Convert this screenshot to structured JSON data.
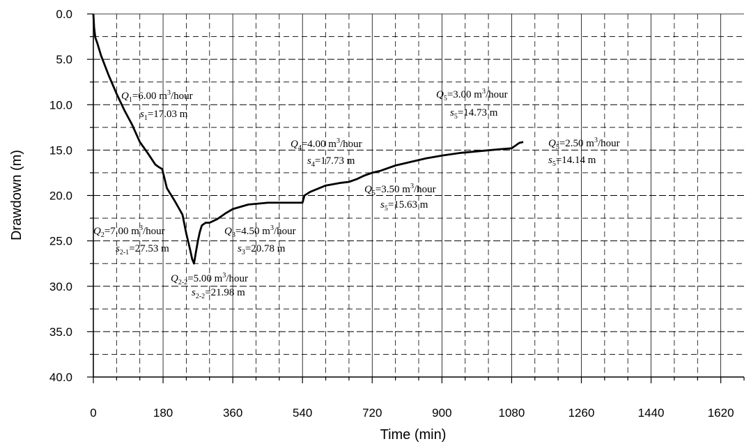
{
  "chart_data": {
    "type": "line",
    "xlabel": "Time (min)",
    "ylabel": "Drawdown (m)",
    "xlim": [
      0,
      1680
    ],
    "ylim": [
      0,
      40
    ],
    "y_inverted": true,
    "x_ticks": [
      0,
      180,
      360,
      540,
      720,
      900,
      1080,
      1260,
      1440,
      1620
    ],
    "y_ticks": [
      "0.0",
      "5.0",
      "10.0",
      "15.0",
      "20.0",
      "25.0",
      "30.0",
      "35.0",
      "40.0"
    ],
    "grid": "solid major + dashed minor",
    "series": [
      {
        "x": [
          0,
          2,
          5,
          10,
          20,
          40,
          60,
          80,
          100,
          120,
          140,
          160,
          170,
          178,
          180,
          190,
          210,
          230,
          240,
          245,
          250,
          255,
          260,
          265,
          270,
          275,
          280,
          290,
          300,
          320,
          340,
          360,
          400,
          450,
          500,
          540,
          545,
          560,
          600,
          640,
          660,
          680,
          700,
          720,
          740,
          780,
          820,
          860,
          900,
          950,
          1000,
          1050,
          1080,
          1090,
          1100,
          1110
        ],
        "y": [
          0.0,
          1.5,
          2.6,
          3.2,
          4.6,
          6.8,
          8.8,
          10.6,
          12.2,
          14.1,
          15.3,
          16.6,
          16.9,
          17.1,
          17.5,
          19.2,
          20.6,
          22.1,
          24.2,
          25.1,
          26.0,
          27.0,
          27.5,
          26.2,
          25.0,
          24.0,
          23.3,
          23.0,
          23.0,
          22.6,
          22.0,
          21.5,
          21.0,
          20.8,
          20.8,
          20.8,
          20.0,
          19.6,
          18.9,
          18.6,
          18.5,
          18.2,
          17.8,
          17.5,
          17.3,
          16.7,
          16.3,
          15.9,
          15.6,
          15.3,
          15.1,
          14.9,
          14.8,
          14.5,
          14.2,
          14.1
        ]
      }
    ],
    "annotations": [
      {
        "q_label": "Q",
        "q_sub": "1",
        "q_val": "=6.00 m",
        "q_unit": "/hour",
        "s_label": "s",
        "s_sub": "1",
        "s_val": "=17.03 m"
      },
      {
        "q_label": "Q",
        "q_sub": "2",
        "q_val": "=7.00 m",
        "q_unit": "/hour",
        "s_label": "s",
        "s_sub": "2-1",
        "s_val": "=27.53 m"
      },
      {
        "q_label": "Q",
        "q_sub": "2-2",
        "q_val": "=5.00 m",
        "q_unit": "/hour",
        "s_label": "s",
        "s_sub": "2-2",
        "s_val": "=21.98 m"
      },
      {
        "q_label": "Q",
        "q_sub": "3",
        "q_val": "=4.50 m",
        "q_unit": "/hour",
        "s_label": "s",
        "s_sub": "3",
        "s_val": "=20.78 m"
      },
      {
        "q_label": "Q",
        "q_sub": "4",
        "q_val": "=4.00 m",
        "q_unit": "/hour",
        "s_label": "s",
        "s_sub": "4",
        "s_val": "=17.73 m"
      },
      {
        "q_label": "Q",
        "q_sub": "5",
        "q_val": "=3.50 m",
        "q_unit": "/hour",
        "s_label": "s",
        "s_sub": "5",
        "s_val": "=15.63 m"
      },
      {
        "q_label": "Q",
        "q_sub": "5",
        "q_val": "=3.00 m",
        "q_unit": "/hour",
        "s_label": "s",
        "s_sub": "5",
        "s_val": "=14.73 m"
      },
      {
        "q_label": "Q",
        "q_sub": "5",
        "q_val": "=2.50 m",
        "q_unit": "/hour",
        "s_label": "s",
        "s_sub": "5",
        "s_val": "=14.14 m"
      }
    ],
    "superscript": "3"
  }
}
